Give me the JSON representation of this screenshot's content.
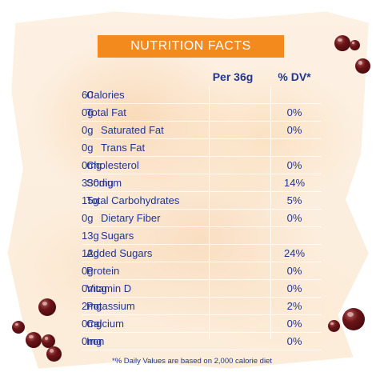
{
  "header": {
    "title": "NUTRITION FACTS"
  },
  "columns": {
    "amount": "Per 36g",
    "daily_value": "% DV*"
  },
  "rows": [
    {
      "label": "Calories",
      "amount": "60",
      "dv": "",
      "indent": false
    },
    {
      "label": "Total Fat",
      "amount": "0g",
      "dv": "0%",
      "indent": false
    },
    {
      "label": "Saturated Fat",
      "amount": "0g",
      "dv": "0%",
      "indent": true
    },
    {
      "label": "Trans Fat",
      "amount": "0g",
      "dv": "",
      "indent": true
    },
    {
      "label": "Cholesterol",
      "amount": "0mg",
      "dv": "0%",
      "indent": false
    },
    {
      "label": "Sodium",
      "amount": "330mg",
      "dv": "14%",
      "indent": false
    },
    {
      "label": "Total Carbohydrates",
      "amount": "15g",
      "dv": "5%",
      "indent": false
    },
    {
      "label": "Dietary Fiber",
      "amount": "0g",
      "dv": "0%",
      "indent": true
    },
    {
      "label": "Sugars",
      "amount": "13g",
      "dv": "",
      "indent": true
    },
    {
      "label": "Added Sugars",
      "amount": "12g",
      "dv": "24%",
      "indent": false
    },
    {
      "label": "Protein",
      "amount": "0g",
      "dv": "0%",
      "indent": false
    },
    {
      "label": "Vitamin D",
      "amount": "0mcg",
      "dv": "0%",
      "indent": false
    },
    {
      "label": "Potassium",
      "amount": "2mg",
      "dv": "2%",
      "indent": false
    },
    {
      "label": "Calcium",
      "amount": "0mg",
      "dv": "0%",
      "indent": false
    },
    {
      "label": "Iron",
      "amount": "0mg",
      "dv": "0%",
      "indent": false
    }
  ],
  "footnote": "*% Daily Values are based on 2,000 calorie diet",
  "colors": {
    "header_bg": "#f28a1e",
    "text": "#20358f",
    "boba": "#5a0c10"
  }
}
